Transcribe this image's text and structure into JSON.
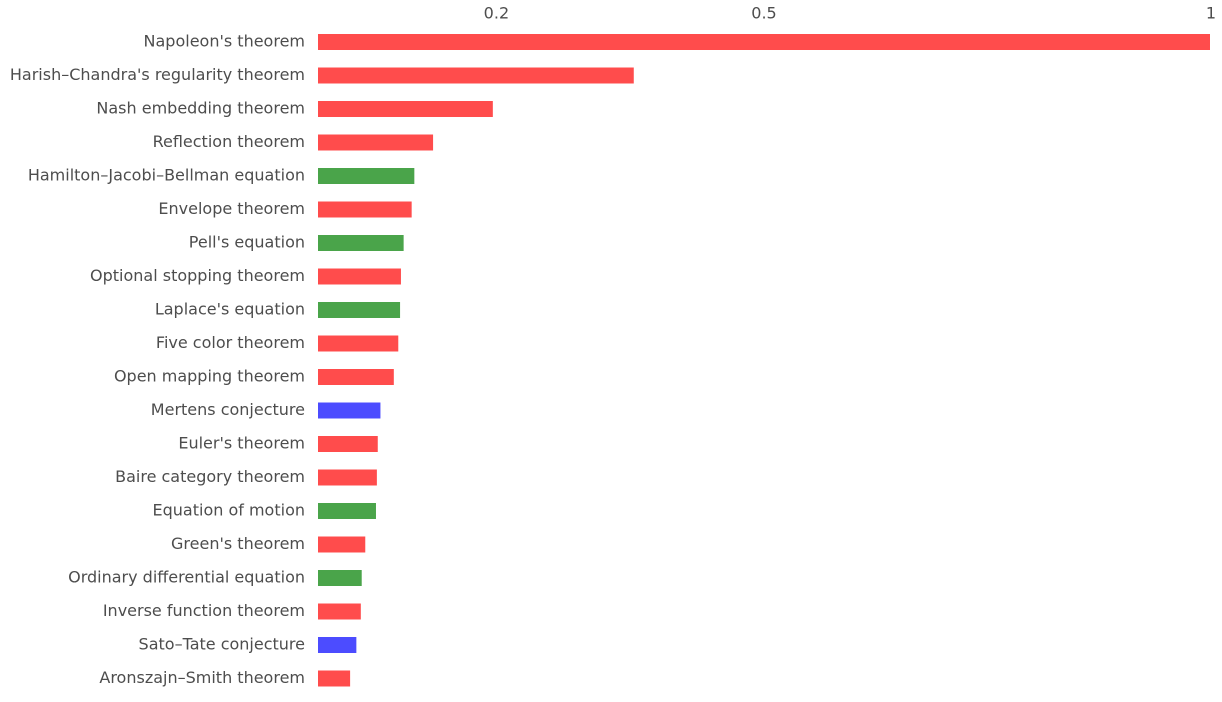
{
  "chart_data": {
    "type": "barh",
    "categories": [
      "Napoleon's theorem",
      "Harish–Chandra's regularity theorem",
      "Nash embedding theorem",
      "Reflection theorem",
      "Hamilton–Jacobi–Bellman equation",
      "Envelope theorem",
      "Pell's equation",
      "Optional stopping theorem",
      "Laplace's equation",
      "Five color theorem",
      "Open mapping theorem",
      "Mertens conjecture",
      "Euler's theorem",
      "Baire category theorem",
      "Equation of motion",
      "Green's theorem",
      "Ordinary differential equation",
      "Inverse function theorem",
      "Sato–Tate conjecture",
      "Aronszajn–Smith theorem"
    ],
    "values": [
      1,
      0.354,
      0.196,
      0.129,
      0.108,
      0.105,
      0.096,
      0.093,
      0.092,
      0.09,
      0.085,
      0.07,
      0.067,
      0.066,
      0.065,
      0.053,
      0.049,
      0.048,
      0.043,
      0.036
    ],
    "colors": [
      "#ff4c4c",
      "#ff4c4c",
      "#ff4c4c",
      "#ff4c4c",
      "#4aa44a",
      "#ff4c4c",
      "#4aa44a",
      "#ff4c4c",
      "#4aa44a",
      "#ff4c4c",
      "#ff4c4c",
      "#4c4cff",
      "#ff4c4c",
      "#ff4c4c",
      "#4aa44a",
      "#ff4c4c",
      "#4aa44a",
      "#ff4c4c",
      "#4c4cff",
      "#ff4c4c"
    ],
    "xlim": [
      0,
      1
    ],
    "xticks": [
      0.2,
      0.5,
      1
    ],
    "grid": false
  }
}
